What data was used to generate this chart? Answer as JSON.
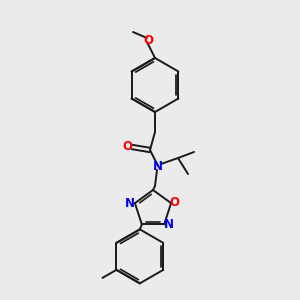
{
  "background_color": "#ebebeb",
  "bond_color": "#1a1a1a",
  "atom_colors": {
    "O": "#ff0000",
    "N": "#0000ee",
    "C": "#1a1a1a"
  },
  "figsize": [
    3.0,
    3.0
  ],
  "dpi": 100
}
